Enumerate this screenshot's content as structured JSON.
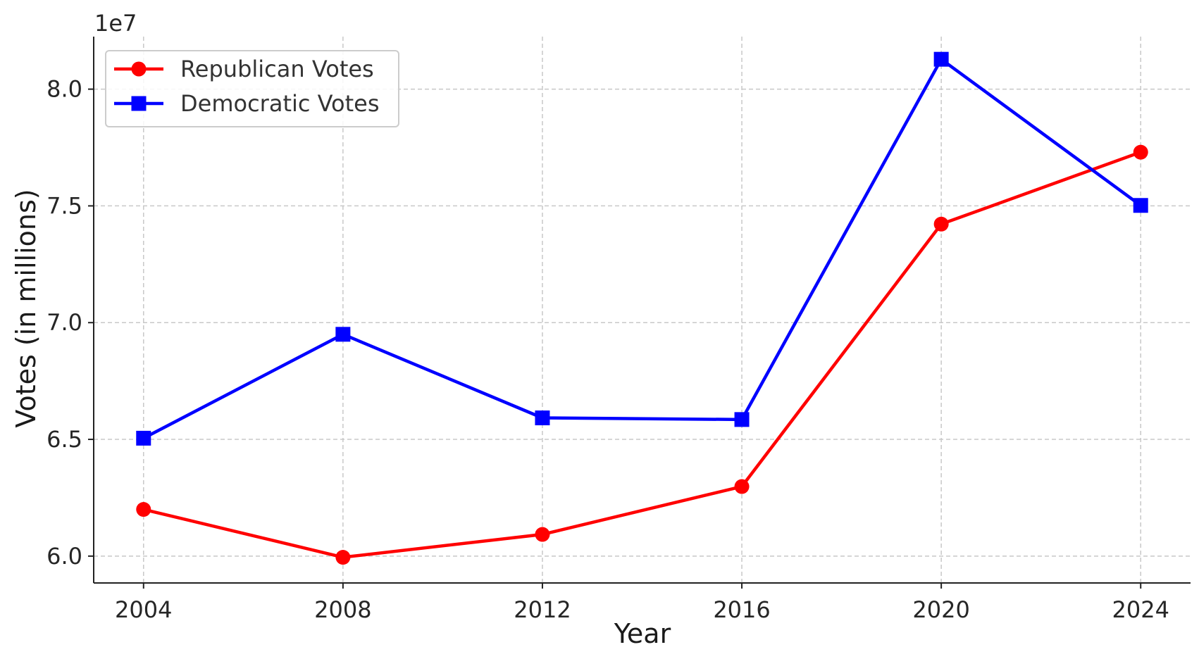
{
  "chart_data": {
    "type": "line",
    "title": "",
    "xlabel": "Year",
    "ylabel": "Votes (in millions)",
    "y_offset_label": "1e7",
    "x": [
      2004,
      2008,
      2012,
      2016,
      2020,
      2024
    ],
    "x_ticks": [
      "2004",
      "2008",
      "2012",
      "2016",
      "2020",
      "2024"
    ],
    "y_ticks": [
      "6.0",
      "6.5",
      "7.0",
      "7.5",
      "8.0"
    ],
    "y_tick_values": [
      60000000,
      65000000,
      70000000,
      75000000,
      80000000
    ],
    "xlim": [
      2003,
      2025
    ],
    "ylim": [
      58850000,
      82250000
    ],
    "grid": true,
    "legend_position": "top-left",
    "series": [
      {
        "name": "Republican Votes",
        "color": "#ff0000",
        "marker": "circle",
        "values": [
          62000000,
          59950000,
          60930000,
          62980000,
          74220000,
          77300000
        ]
      },
      {
        "name": "Democratic Votes",
        "color": "#0000ff",
        "marker": "square",
        "values": [
          65050000,
          69500000,
          65920000,
          65850000,
          81280000,
          75020000
        ]
      }
    ]
  }
}
